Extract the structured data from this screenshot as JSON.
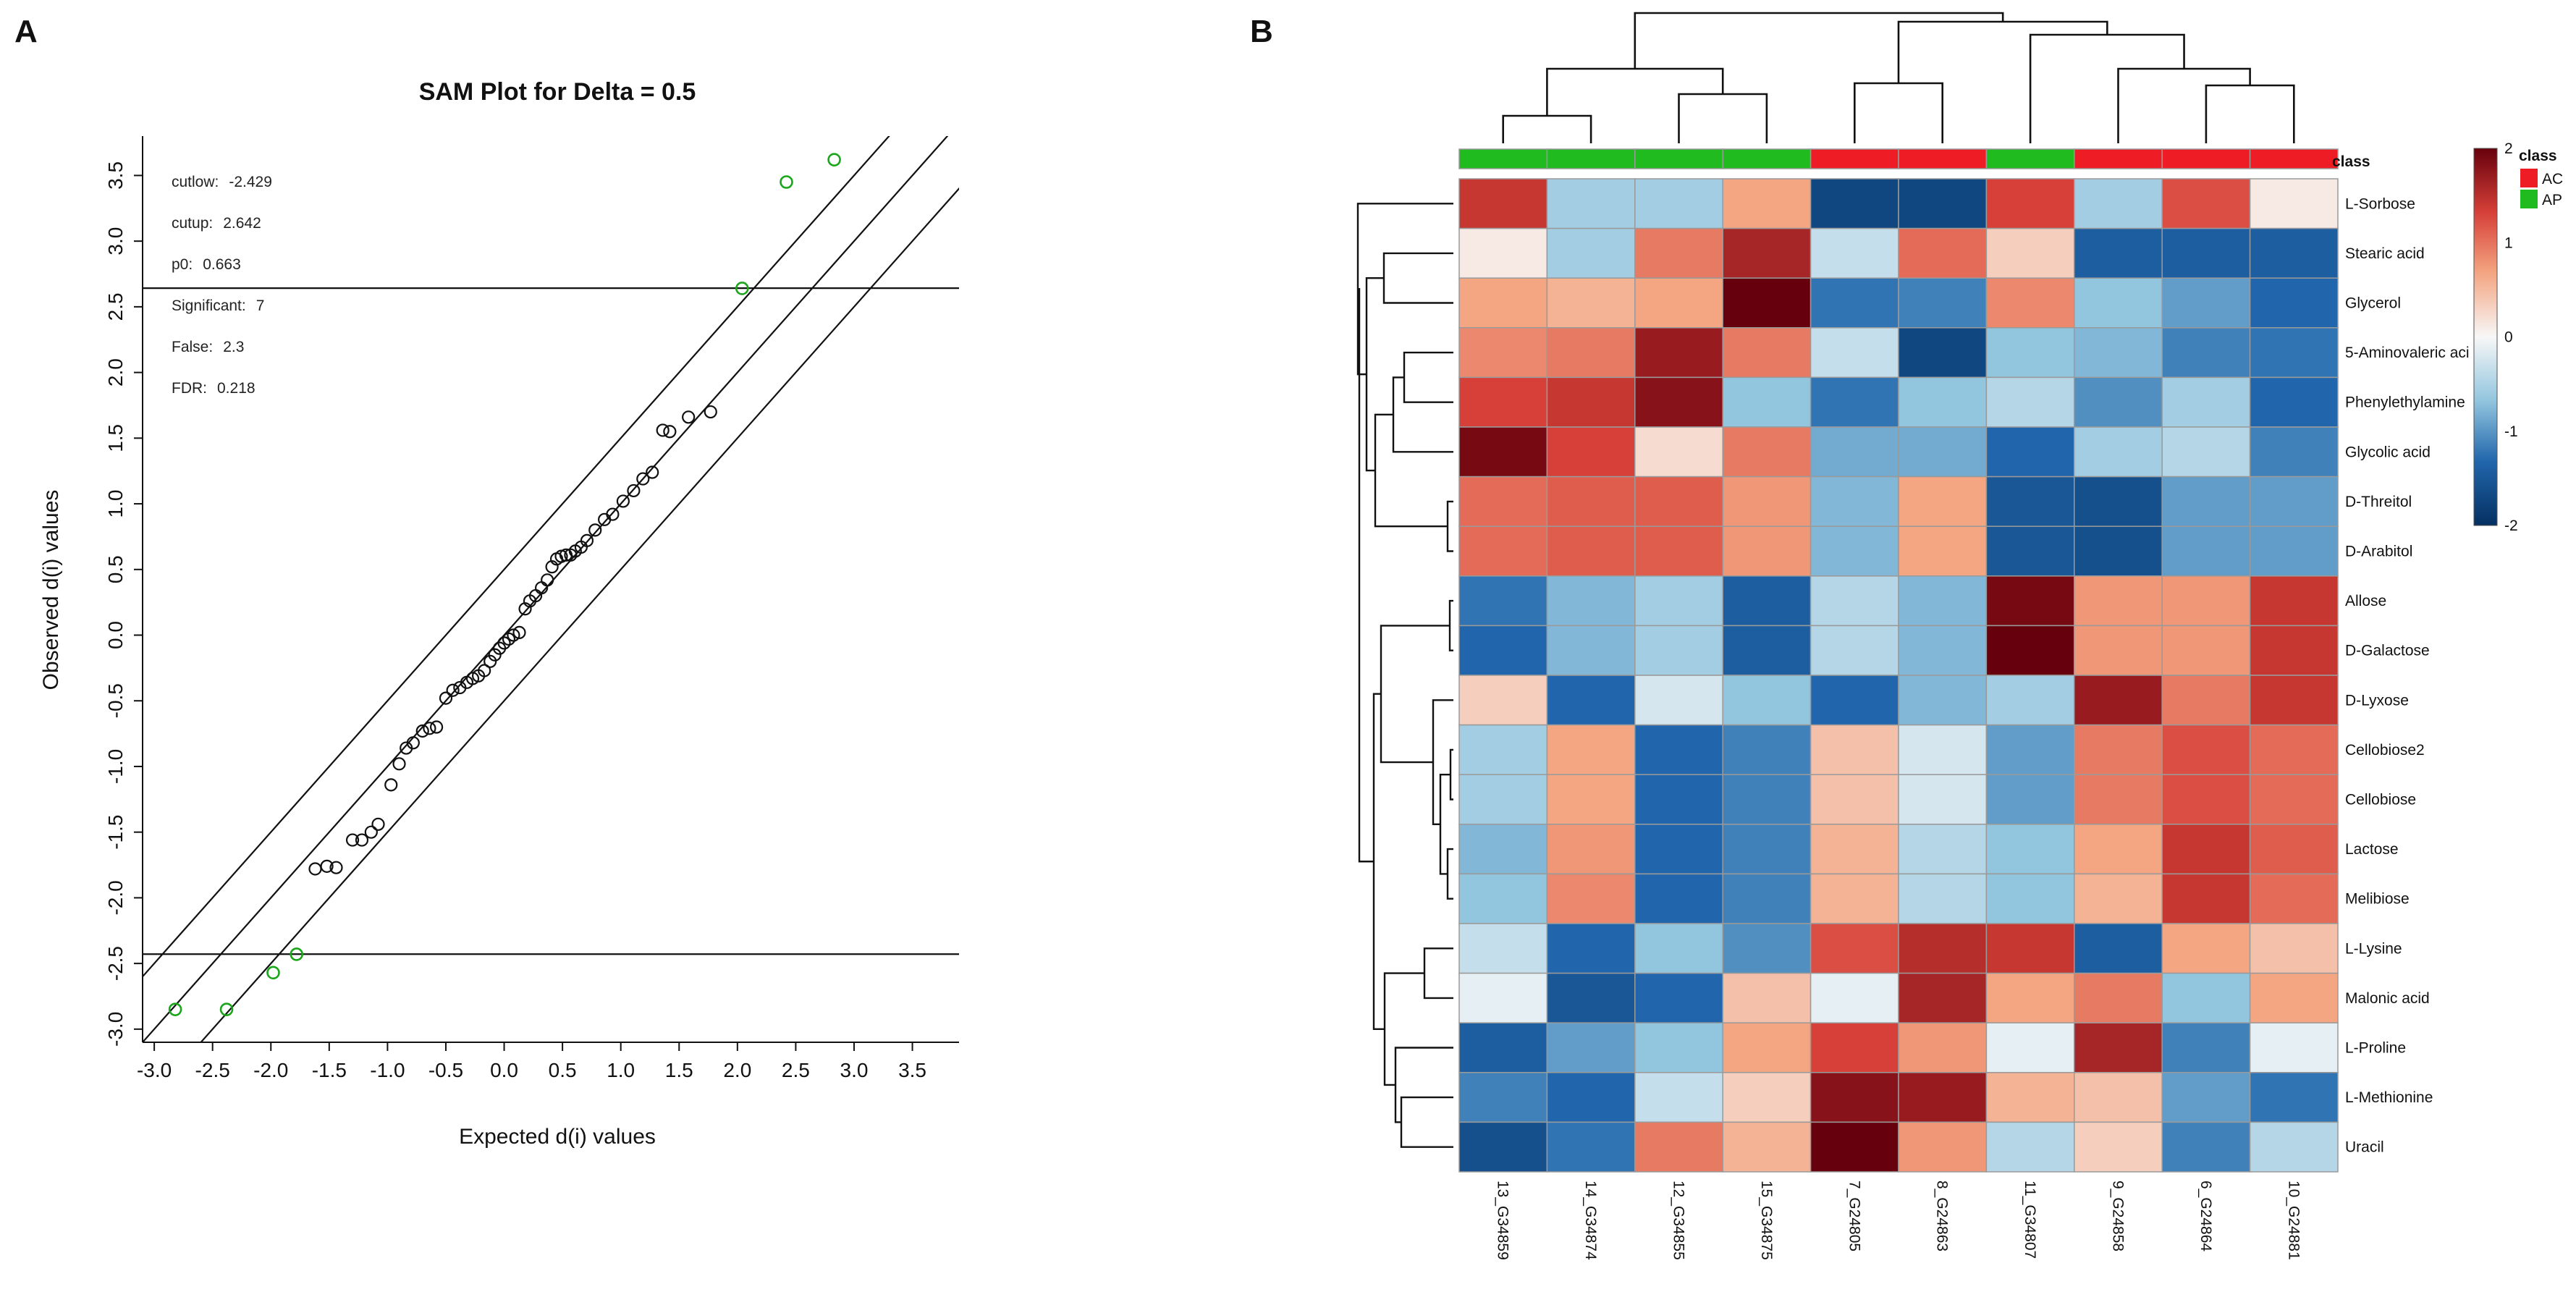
{
  "chart_data": [
    {
      "panel": "A",
      "type": "scatter",
      "title": "SAM Plot for Delta = 0.5",
      "xlabel": "Expected d(i) values",
      "ylabel": "Observed d(i) values",
      "xlim": [
        -3.1,
        3.9
      ],
      "ylim": [
        -3.1,
        3.8
      ],
      "xticks": [
        "-3.0",
        "-2.5",
        "-2.0",
        "-1.5",
        "-1.0",
        "-0.5",
        "0.0",
        "0.5",
        "1.0",
        "1.5",
        "2.0",
        "2.5",
        "3.0",
        "3.5"
      ],
      "yticks": [
        "-3.0",
        "-2.5",
        "-2.0",
        "-1.5",
        "-1.0",
        "-0.5",
        "0.0",
        "0.5",
        "1.0",
        "1.5",
        "2.0",
        "2.5",
        "3.0",
        "3.5"
      ],
      "stats": [
        {
          "label": "cutlow:",
          "value": "-2.429"
        },
        {
          "label": "cutup:",
          "value": "2.642"
        },
        {
          "label": "p0:",
          "value": "0.663"
        },
        {
          "label": "Significant:",
          "value": "7"
        },
        {
          "label": "False:",
          "value": "2.3"
        },
        {
          "label": "FDR:",
          "value": "0.218"
        }
      ],
      "cutlow": -2.429,
      "cutup": 2.642,
      "delta": 0.5,
      "significant_color": "#1aa51a",
      "point_color": "#111111",
      "significant_points": [
        {
          "x": -2.82,
          "y": -2.85
        },
        {
          "x": -2.38,
          "y": -2.85
        },
        {
          "x": -1.98,
          "y": -2.57
        },
        {
          "x": -1.78,
          "y": -2.43
        },
        {
          "x": 2.04,
          "y": 2.64
        },
        {
          "x": 2.42,
          "y": 3.45
        },
        {
          "x": 2.83,
          "y": 3.62
        }
      ],
      "points": [
        [
          -1.62,
          -1.78
        ],
        [
          -1.52,
          -1.76
        ],
        [
          -1.44,
          -1.77
        ],
        [
          -1.3,
          -1.56
        ],
        [
          -1.22,
          -1.56
        ],
        [
          -1.14,
          -1.5
        ],
        [
          -1.08,
          -1.44
        ],
        [
          -0.97,
          -1.14
        ],
        [
          -0.9,
          -0.98
        ],
        [
          -0.84,
          -0.86
        ],
        [
          -0.78,
          -0.82
        ],
        [
          -0.7,
          -0.73
        ],
        [
          -0.64,
          -0.71
        ],
        [
          -0.58,
          -0.7
        ],
        [
          -0.5,
          -0.48
        ],
        [
          -0.44,
          -0.42
        ],
        [
          -0.38,
          -0.4
        ],
        [
          -0.32,
          -0.36
        ],
        [
          -0.27,
          -0.33
        ],
        [
          -0.22,
          -0.31
        ],
        [
          -0.17,
          -0.27
        ],
        [
          -0.12,
          -0.2
        ],
        [
          -0.08,
          -0.15
        ],
        [
          -0.04,
          -0.1
        ],
        [
          0.0,
          -0.06
        ],
        [
          0.04,
          -0.03
        ],
        [
          0.08,
          0.0
        ],
        [
          0.13,
          0.02
        ],
        [
          0.18,
          0.2
        ],
        [
          0.22,
          0.26
        ],
        [
          0.27,
          0.3
        ],
        [
          0.32,
          0.36
        ],
        [
          0.37,
          0.42
        ],
        [
          0.41,
          0.52
        ],
        [
          0.45,
          0.58
        ],
        [
          0.49,
          0.6
        ],
        [
          0.53,
          0.61
        ],
        [
          0.57,
          0.61
        ],
        [
          0.61,
          0.64
        ],
        [
          0.66,
          0.67
        ],
        [
          0.71,
          0.72
        ],
        [
          0.78,
          0.8
        ],
        [
          0.86,
          0.88
        ],
        [
          0.93,
          0.92
        ],
        [
          1.02,
          1.02
        ],
        [
          1.11,
          1.1
        ],
        [
          1.19,
          1.19
        ],
        [
          1.27,
          1.24
        ],
        [
          1.36,
          1.56
        ],
        [
          1.42,
          1.55
        ],
        [
          1.58,
          1.66
        ],
        [
          1.77,
          1.7
        ]
      ]
    },
    {
      "panel": "B",
      "type": "heatmap",
      "title": "",
      "columns": [
        "13_G34859",
        "14_G34874",
        "12_G34855",
        "15_G34875",
        "7_G24805",
        "8_G24863",
        "11_G34807",
        "9_G24858",
        "6_G24864",
        "10_G24881"
      ],
      "column_class": [
        "AP",
        "AP",
        "AP",
        "AP",
        "AC",
        "AC",
        "AP",
        "AC",
        "AC",
        "AC"
      ],
      "class_label": "class",
      "class_colors": {
        "AC": "#ee1c24",
        "AP": "#1fbb1f"
      },
      "legend": {
        "title": "class",
        "items": [
          "AC",
          "AP"
        ]
      },
      "colorbar": {
        "ticks": [
          "2",
          "1",
          "0",
          "-1",
          "-2"
        ],
        "range": [
          -2,
          2
        ]
      },
      "rows": [
        "L-Sorbose",
        "Stearic acid",
        "Glycerol",
        "5-Aminovaleric aci",
        "Phenylethylamine",
        "Glycolic acid",
        "D-Threitol",
        "D-Arabitol",
        "Allose",
        "D-Galactose",
        "D-Lyxose",
        "Cellobiose2",
        "Cellobiose",
        "Lactose",
        "Melibiose",
        "L-Lysine",
        "Malonic acid",
        "L-Proline",
        "L-Methionine",
        "Uracil"
      ],
      "values": [
        [
          1.4,
          -0.5,
          -0.5,
          0.6,
          -1.7,
          -1.7,
          1.3,
          -0.5,
          1.2,
          0.1
        ],
        [
          0.1,
          -0.5,
          0.9,
          1.6,
          -0.3,
          1.0,
          0.3,
          -1.4,
          -1.4,
          -1.4
        ],
        [
          0.6,
          0.5,
          0.6,
          2.0,
          -1.2,
          -1.1,
          0.8,
          -0.6,
          -0.9,
          -1.3
        ],
        [
          0.8,
          0.9,
          1.7,
          0.9,
          -0.3,
          -1.7,
          -0.6,
          -0.7,
          -1.1,
          -1.2
        ],
        [
          1.3,
          1.4,
          1.8,
          -0.6,
          -1.2,
          -0.6,
          -0.4,
          -1.0,
          -0.5,
          -1.3
        ],
        [
          1.9,
          1.3,
          0.2,
          0.9,
          -0.8,
          -0.8,
          -1.3,
          -0.5,
          -0.4,
          -1.1
        ],
        [
          1.0,
          1.1,
          1.1,
          0.7,
          -0.7,
          0.6,
          -1.5,
          -1.6,
          -0.9,
          -0.9
        ],
        [
          1.0,
          1.1,
          1.1,
          0.7,
          -0.7,
          0.6,
          -1.5,
          -1.6,
          -0.9,
          -0.9
        ],
        [
          -1.2,
          -0.7,
          -0.5,
          -1.4,
          -0.4,
          -0.7,
          1.9,
          0.7,
          0.7,
          1.4
        ],
        [
          -1.3,
          -0.7,
          -0.5,
          -1.4,
          -0.4,
          -0.7,
          2.0,
          0.7,
          0.7,
          1.4
        ],
        [
          0.3,
          -1.3,
          -0.2,
          -0.6,
          -1.3,
          -0.7,
          -0.5,
          1.7,
          0.9,
          1.4
        ],
        [
          -0.5,
          0.6,
          -1.3,
          -1.1,
          0.4,
          -0.2,
          -0.9,
          0.9,
          1.2,
          1.0
        ],
        [
          -0.5,
          0.6,
          -1.3,
          -1.1,
          0.4,
          -0.2,
          -0.9,
          0.9,
          1.2,
          1.0
        ],
        [
          -0.7,
          0.7,
          -1.3,
          -1.1,
          0.5,
          -0.4,
          -0.6,
          0.6,
          1.4,
          1.1
        ],
        [
          -0.6,
          0.8,
          -1.3,
          -1.1,
          0.5,
          -0.4,
          -0.6,
          0.5,
          1.4,
          1.0
        ],
        [
          -0.3,
          -1.3,
          -0.6,
          -1.0,
          1.2,
          1.5,
          1.4,
          -1.4,
          0.6,
          0.4
        ],
        [
          -0.1,
          -1.5,
          -1.3,
          0.4,
          -0.1,
          1.6,
          0.6,
          0.9,
          -0.6,
          0.6
        ],
        [
          -1.4,
          -0.9,
          -0.6,
          0.6,
          1.3,
          0.7,
          -0.1,
          1.6,
          -1.1,
          -0.1
        ],
        [
          -1.1,
          -1.3,
          -0.3,
          0.3,
          1.8,
          1.7,
          0.5,
          0.4,
          -0.9,
          -1.2
        ],
        [
          -1.6,
          -1.2,
          0.9,
          0.5,
          2.0,
          0.7,
          -0.4,
          0.3,
          -1.1,
          -0.4
        ]
      ]
    }
  ],
  "panels": {
    "a_letter": "A",
    "b_letter": "B"
  }
}
